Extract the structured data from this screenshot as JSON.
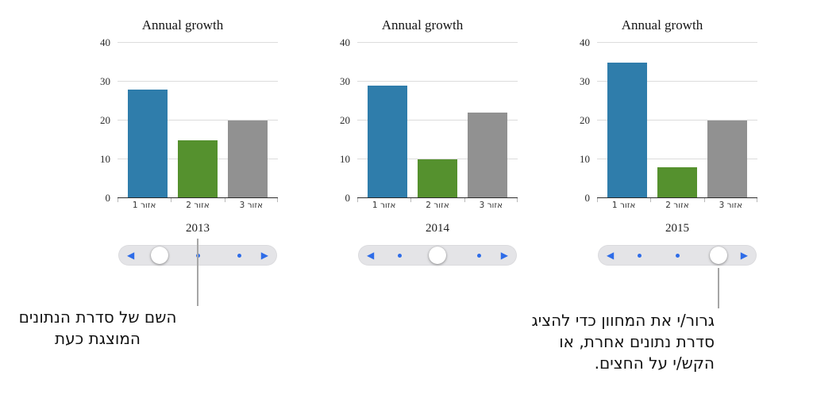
{
  "chart_data": [
    {
      "type": "bar",
      "title": "Annual growth",
      "series_name": "2013",
      "categories": [
        "אזור 1",
        "אזור 2",
        "אזור 3"
      ],
      "values": [
        28,
        15,
        20
      ],
      "ylim": [
        0,
        40
      ],
      "yticks": [
        0,
        10,
        20,
        30,
        40
      ],
      "bar_colors": [
        "#2f7dab",
        "#55912e",
        "#919191"
      ],
      "grid": true,
      "legend_position": "none",
      "slider_position": 0
    },
    {
      "type": "bar",
      "title": "Annual growth",
      "series_name": "2014",
      "categories": [
        "אזור 1",
        "אזור 2",
        "אזור 3"
      ],
      "values": [
        29,
        10,
        22
      ],
      "ylim": [
        0,
        40
      ],
      "yticks": [
        0,
        10,
        20,
        30,
        40
      ],
      "bar_colors": [
        "#2f7dab",
        "#55912e",
        "#919191"
      ],
      "grid": true,
      "legend_position": "none",
      "slider_position": 1
    },
    {
      "type": "bar",
      "title": "Annual growth",
      "series_name": "2015",
      "categories": [
        "אזור 1",
        "אזור 2",
        "אזור 3"
      ],
      "values": [
        35,
        8,
        20
      ],
      "ylim": [
        0,
        40
      ],
      "yticks": [
        0,
        10,
        20,
        30,
        40
      ],
      "bar_colors": [
        "#2f7dab",
        "#55912e",
        "#919191"
      ],
      "grid": true,
      "legend_position": "none",
      "slider_position": 2
    }
  ],
  "slider": {
    "positions": 3,
    "stop_percents": [
      26,
      50,
      76
    ],
    "prev_arrow": "◀",
    "next_arrow": "▶"
  },
  "annotations": {
    "left": {
      "lines": [
        "השם של סדרת הנתונים",
        "המוצגת כעת"
      ]
    },
    "right": {
      "lines": [
        "גרור/י את המחוון כדי להציג",
        "סדרת נתונים אחרת, או",
        "הקש/י על החצים."
      ]
    }
  },
  "colors": {
    "bar_blue": "#2f7dab",
    "bar_green": "#55912e",
    "bar_gray": "#919191",
    "arrow_blue": "#2e6ce8",
    "slider_track": "#e4e4e7",
    "gridline": "#dcdcdc",
    "axis_line": "#2a2a2a",
    "callout_line": "#a6a6a6",
    "background": "#ffffff"
  }
}
